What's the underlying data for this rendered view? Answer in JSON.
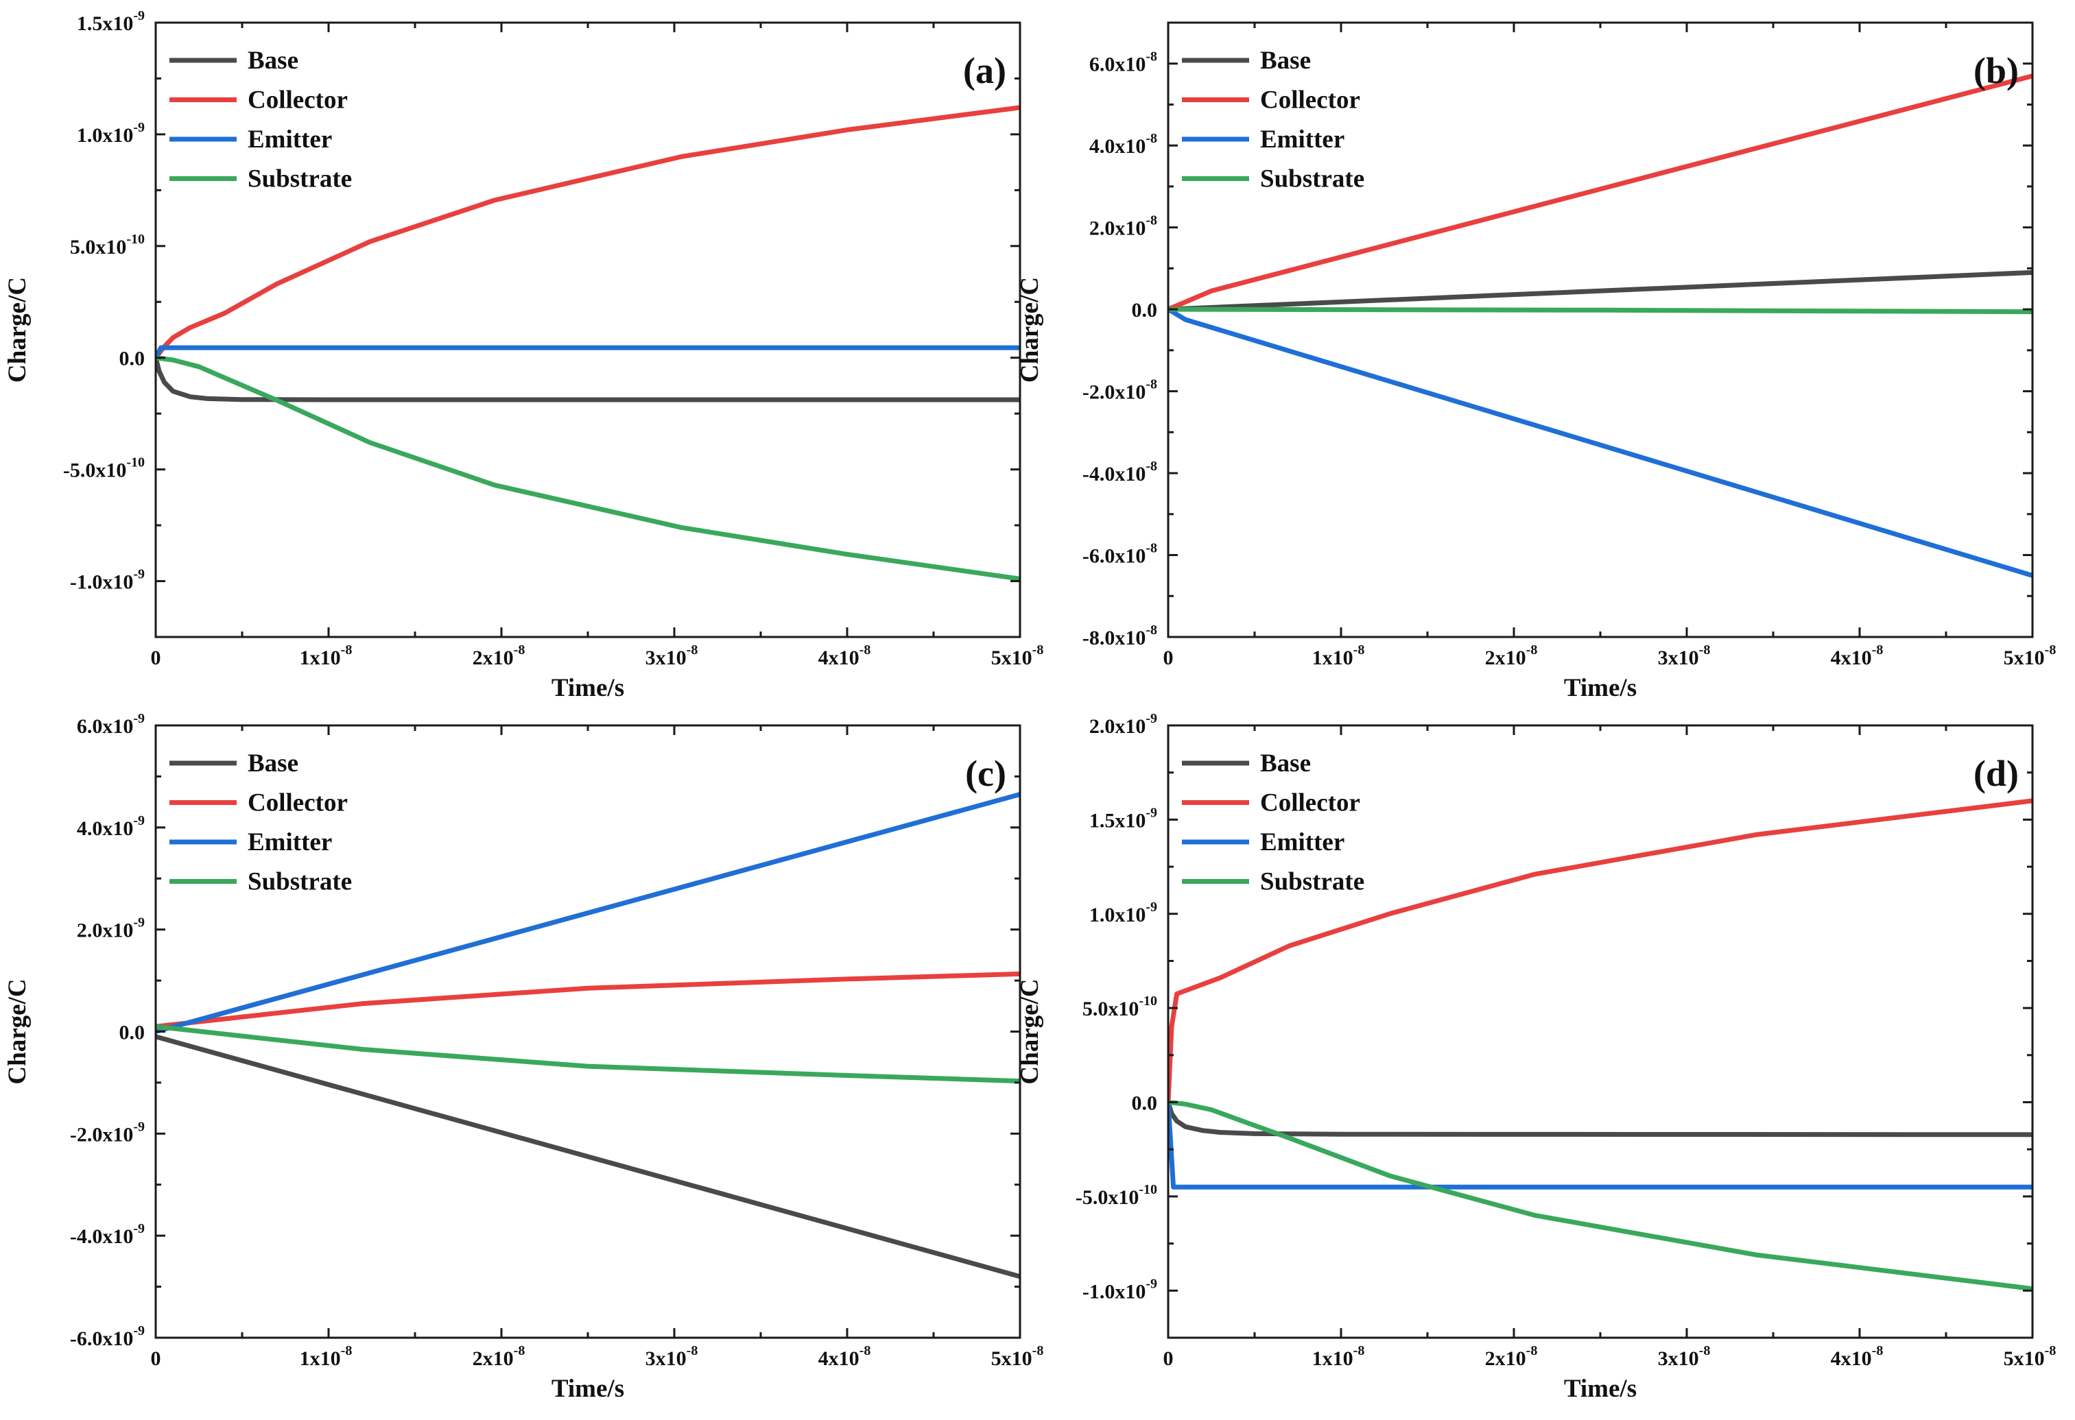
{
  "figure": {
    "domain": "Chart"
  },
  "colors": {
    "Base": "#4a4a4a",
    "Collector": "#e8403f",
    "Emitter": "#1f6fd6",
    "Substrate": "#3aa85c",
    "axis": "#1a1a1a"
  },
  "chart_data": [
    {
      "type": "line",
      "panel": "(a)",
      "xlabel": "Time/s",
      "ylabel": "Charge/C",
      "xlim": [
        0,
        5e-08
      ],
      "ylim": [
        -1.25e-09,
        1.5e-09
      ],
      "legend_position": "top-left",
      "grid": false,
      "xticks": [
        {
          "v": 0,
          "m": "0",
          "e": ""
        },
        {
          "v": 1e-08,
          "m": "1x10",
          "e": "-8"
        },
        {
          "v": 2e-08,
          "m": "2x10",
          "e": "-8"
        },
        {
          "v": 3e-08,
          "m": "3x10",
          "e": "-8"
        },
        {
          "v": 4e-08,
          "m": "4x10",
          "e": "-8"
        },
        {
          "v": 5e-08,
          "m": "5x10",
          "e": "-8"
        }
      ],
      "yticks": [
        {
          "v": 1.5e-09,
          "m": "1.5x10",
          "e": "-9"
        },
        {
          "v": 1e-09,
          "m": "1.0x10",
          "e": "-9"
        },
        {
          "v": 5e-10,
          "m": "5.0x10",
          "e": "-10"
        },
        {
          "v": 0,
          "m": "0.0",
          "e": ""
        },
        {
          "v": -5e-10,
          "m": "-5.0x10",
          "e": "-10"
        },
        {
          "v": -1e-09,
          "m": "-1.0x10",
          "e": "-9"
        }
      ],
      "series": [
        {
          "name": "Base",
          "x": [
            0,
            2e-10,
            5e-10,
            1e-09,
            2e-09,
            3e-09,
            5e-09,
            1e-08,
            2e-08,
            3e-08,
            4e-08,
            5e-08
          ],
          "y": [
            0,
            -6e-11,
            -1.1e-10,
            -1.5e-10,
            -1.75e-10,
            -1.83e-10,
            -1.87e-10,
            -1.88e-10,
            -1.88e-10,
            -1.88e-10,
            -1.88e-10,
            -1.88e-10
          ]
        },
        {
          "name": "Collector",
          "x": [
            0,
            5e-10,
            1e-09,
            2e-09,
            4e-09,
            7e-09,
            1.24e-08,
            1.96e-08,
            3.04e-08,
            4e-08,
            5e-08
          ],
          "y": [
            0,
            5e-11,
            9e-11,
            1.35e-10,
            2e-10,
            3.3e-10,
            5.2e-10,
            7.05e-10,
            9e-10,
            1.02e-09,
            1.12e-09
          ]
        },
        {
          "name": "Emitter",
          "x": [
            0,
            3e-10,
            5e-08
          ],
          "y": [
            0,
            4.5e-11,
            4.5e-11
          ]
        },
        {
          "name": "Substrate",
          "x": [
            0,
            1e-09,
            2.5e-09,
            4e-09,
            7e-09,
            1.24e-08,
            1.96e-08,
            3.04e-08,
            4e-08,
            5e-08
          ],
          "y": [
            0,
            -1e-11,
            -4e-11,
            -9e-11,
            -1.9e-10,
            -3.8e-10,
            -5.7e-10,
            -7.6e-10,
            -8.8e-10,
            -9.9e-10
          ]
        }
      ]
    },
    {
      "type": "line",
      "panel": "(b)",
      "xlabel": "Time/s",
      "ylabel": "Charge/C",
      "xlim": [
        0,
        5e-08
      ],
      "ylim": [
        -8e-08,
        7e-08
      ],
      "legend_position": "top-left",
      "grid": false,
      "xticks": [
        {
          "v": 0,
          "m": "0",
          "e": ""
        },
        {
          "v": 1e-08,
          "m": "1x10",
          "e": "-8"
        },
        {
          "v": 2e-08,
          "m": "2x10",
          "e": "-8"
        },
        {
          "v": 3e-08,
          "m": "3x10",
          "e": "-8"
        },
        {
          "v": 4e-08,
          "m": "4x10",
          "e": "-8"
        },
        {
          "v": 5e-08,
          "m": "5x10",
          "e": "-8"
        }
      ],
      "yticks": [
        {
          "v": 6e-08,
          "m": "6.0x10",
          "e": "-8"
        },
        {
          "v": 4e-08,
          "m": "4.0x10",
          "e": "-8"
        },
        {
          "v": 2e-08,
          "m": "2.0x10",
          "e": "-8"
        },
        {
          "v": 0,
          "m": "0.0",
          "e": ""
        },
        {
          "v": -2e-08,
          "m": "-2.0x10",
          "e": "-8"
        },
        {
          "v": -4e-08,
          "m": "-4.0x10",
          "e": "-8"
        },
        {
          "v": -6e-08,
          "m": "-6.0x10",
          "e": "-8"
        },
        {
          "v": -8e-08,
          "m": "-8.0x10",
          "e": "-8"
        }
      ],
      "series": [
        {
          "name": "Base",
          "x": [
            0,
            5e-08
          ],
          "y": [
            0,
            9e-09
          ]
        },
        {
          "name": "Collector",
          "x": [
            0,
            2.5e-09,
            5e-08
          ],
          "y": [
            0,
            4.5e-09,
            5.7e-08
          ]
        },
        {
          "name": "Emitter",
          "x": [
            0,
            1e-09,
            5e-08
          ],
          "y": [
            0,
            -2.5e-09,
            -6.5e-08
          ]
        },
        {
          "name": "Substrate",
          "x": [
            0,
            2.5e-08,
            5e-08
          ],
          "y": [
            0,
            -2e-10,
            -6e-10
          ]
        }
      ]
    },
    {
      "type": "line",
      "panel": "(c)",
      "xlabel": "Time/s",
      "ylabel": "Charge/C",
      "xlim": [
        0,
        5e-08
      ],
      "ylim": [
        -6e-09,
        6e-09
      ],
      "legend_position": "top-left",
      "grid": false,
      "xticks": [
        {
          "v": 0,
          "m": "0",
          "e": ""
        },
        {
          "v": 1e-08,
          "m": "1x10",
          "e": "-8"
        },
        {
          "v": 2e-08,
          "m": "2x10",
          "e": "-8"
        },
        {
          "v": 3e-08,
          "m": "3x10",
          "e": "-8"
        },
        {
          "v": 4e-08,
          "m": "4x10",
          "e": "-8"
        },
        {
          "v": 5e-08,
          "m": "5x10",
          "e": "-8"
        }
      ],
      "yticks": [
        {
          "v": 6e-09,
          "m": "6.0x10",
          "e": "-9"
        },
        {
          "v": 4e-09,
          "m": "4.0x10",
          "e": "-9"
        },
        {
          "v": 2e-09,
          "m": "2.0x10",
          "e": "-9"
        },
        {
          "v": 0,
          "m": "0.0",
          "e": ""
        },
        {
          "v": -2e-09,
          "m": "-2.0x10",
          "e": "-9"
        },
        {
          "v": -4e-09,
          "m": "-4.0x10",
          "e": "-9"
        },
        {
          "v": -6e-09,
          "m": "-6.0x10",
          "e": "-9"
        }
      ],
      "series": [
        {
          "name": "Base",
          "x": [
            0,
            5e-08
          ],
          "y": [
            -1e-10,
            -4.8e-09
          ]
        },
        {
          "name": "Collector",
          "x": [
            0,
            1.2e-08,
            2.5e-08,
            4e-08,
            5e-08
          ],
          "y": [
            1e-10,
            5.5e-10,
            8.5e-10,
            1.03e-09,
            1.13e-09
          ]
        },
        {
          "name": "Emitter",
          "x": [
            0,
            5e-08
          ],
          "y": [
            0,
            4.65e-09
          ]
        },
        {
          "name": "Substrate",
          "x": [
            0,
            1.2e-08,
            2.5e-08,
            4e-08,
            5e-08
          ],
          "y": [
            1e-10,
            -3.5e-10,
            -6.8e-10,
            -8.6e-10,
            -9.7e-10
          ]
        }
      ]
    },
    {
      "type": "line",
      "panel": "(d)",
      "xlabel": "Time/s",
      "ylabel": "Charge/C",
      "xlim": [
        0,
        5e-08
      ],
      "ylim": [
        -1.25e-09,
        2e-09
      ],
      "legend_position": "top-left",
      "grid": false,
      "xticks": [
        {
          "v": 0,
          "m": "0",
          "e": ""
        },
        {
          "v": 1e-08,
          "m": "1x10",
          "e": "-8"
        },
        {
          "v": 2e-08,
          "m": "2x10",
          "e": "-8"
        },
        {
          "v": 3e-08,
          "m": "3x10",
          "e": "-8"
        },
        {
          "v": 4e-08,
          "m": "4x10",
          "e": "-8"
        },
        {
          "v": 5e-08,
          "m": "5x10",
          "e": "-8"
        }
      ],
      "yticks": [
        {
          "v": 2e-09,
          "m": "2.0x10",
          "e": "-9"
        },
        {
          "v": 1.5e-09,
          "m": "1.5x10",
          "e": "-9"
        },
        {
          "v": 1e-09,
          "m": "1.0x10",
          "e": "-9"
        },
        {
          "v": 5e-10,
          "m": "5.0x10",
          "e": "-10"
        },
        {
          "v": 0,
          "m": "0.0",
          "e": ""
        },
        {
          "v": -5e-10,
          "m": "-5.0x10",
          "e": "-10"
        },
        {
          "v": -1e-09,
          "m": "-1.0x10",
          "e": "-9"
        }
      ],
      "series": [
        {
          "name": "Base",
          "x": [
            0,
            2e-10,
            5e-10,
            1e-09,
            2e-09,
            3e-09,
            5e-09,
            1e-08,
            5e-08
          ],
          "y": [
            0,
            -6e-11,
            -1e-10,
            -1.3e-10,
            -1.5e-10,
            -1.6e-10,
            -1.67e-10,
            -1.7e-10,
            -1.72e-10
          ]
        },
        {
          "name": "Collector",
          "x": [
            0,
            2e-10,
            5e-10,
            3e-09,
            7e-09,
            1.28e-08,
            2.12e-08,
            3.4e-08,
            5e-08
          ],
          "y": [
            0,
            4e-10,
            5.75e-10,
            6.6e-10,
            8.3e-10,
            1e-09,
            1.21e-09,
            1.42e-09,
            1.6e-09
          ]
        },
        {
          "name": "Emitter",
          "x": [
            0,
            3e-10,
            5e-08
          ],
          "y": [
            0,
            -4.5e-10,
            -4.5e-10
          ]
        },
        {
          "name": "Substrate",
          "x": [
            0,
            1e-09,
            2.5e-09,
            4e-09,
            7e-09,
            1.28e-08,
            2.12e-08,
            3.4e-08,
            5e-08
          ],
          "y": [
            0,
            -1e-11,
            -4e-11,
            -9e-11,
            -1.9e-10,
            -3.9e-10,
            -6e-10,
            -8.1e-10,
            -9.9e-10
          ]
        }
      ]
    }
  ]
}
